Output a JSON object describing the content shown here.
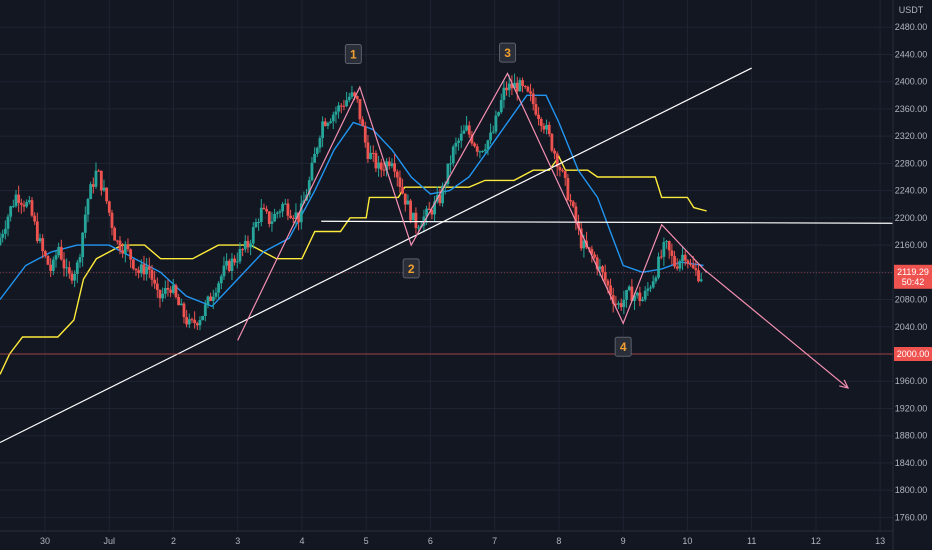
{
  "chart_data": {
    "type": "candlestick",
    "currency": "USDT",
    "y_axis": {
      "ticks": [
        2480,
        2440,
        2400,
        2360,
        2320,
        2280,
        2240,
        2200,
        2160,
        2120,
        2080,
        2040,
        2000,
        1960,
        1920,
        1880,
        1840,
        1800,
        1760
      ],
      "tick_labels": [
        "2480.00",
        "2440.00",
        "2400.00",
        "2360.00",
        "2320.00",
        "2280.00",
        "2240.00",
        "2200.00",
        "2160.00",
        "2120.00",
        "2080.00",
        "2040.00",
        "2000.00",
        "1960.00",
        "1920.00",
        "1880.00",
        "1840.00",
        "1800.00",
        "1760.00"
      ],
      "range": [
        1740,
        2520
      ]
    },
    "x_axis": {
      "tick_labels": [
        "30",
        "Jul",
        "2",
        "3",
        "4",
        "5",
        "6",
        "7",
        "8",
        "9",
        "10",
        "11",
        "12",
        "13"
      ],
      "tick_positions": [
        -1,
        0,
        1,
        2,
        3,
        4,
        5,
        6,
        7,
        8,
        9,
        10,
        11,
        12
      ],
      "range": [
        -1.7,
        12.2
      ]
    },
    "current_price": {
      "value": 2119.29,
      "label": "2119.29",
      "countdown": "50:42"
    },
    "support_level": {
      "value": 2000,
      "label": "2000.00"
    },
    "candles_anchor_path": [
      [
        -1.7,
        2160
      ],
      [
        -1.55,
        2200
      ],
      [
        -1.4,
        2235
      ],
      [
        -1.2,
        2215
      ],
      [
        -1.0,
        2150
      ],
      [
        -0.85,
        2120
      ],
      [
        -0.75,
        2160
      ],
      [
        -0.6,
        2110
      ],
      [
        -0.45,
        2130
      ],
      [
        -0.3,
        2225
      ],
      [
        -0.15,
        2270
      ],
      [
        0.0,
        2225
      ],
      [
        0.15,
        2165
      ],
      [
        0.3,
        2155
      ],
      [
        0.5,
        2120
      ],
      [
        0.65,
        2130
      ],
      [
        0.8,
        2080
      ],
      [
        1.0,
        2100
      ],
      [
        1.1,
        2075
      ],
      [
        1.3,
        2040
      ],
      [
        1.5,
        2060
      ],
      [
        1.7,
        2100
      ],
      [
        1.85,
        2125
      ],
      [
        2.0,
        2140
      ],
      [
        2.2,
        2160
      ],
      [
        2.4,
        2210
      ],
      [
        2.55,
        2195
      ],
      [
        2.75,
        2220
      ],
      [
        3.0,
        2200
      ],
      [
        3.15,
        2250
      ],
      [
        3.35,
        2340
      ],
      [
        3.55,
        2355
      ],
      [
        3.8,
        2380
      ],
      [
        3.9,
        2370
      ],
      [
        4.05,
        2300
      ],
      [
        4.25,
        2270
      ],
      [
        4.45,
        2290
      ],
      [
        4.6,
        2240
      ],
      [
        4.8,
        2190
      ],
      [
        5.0,
        2205
      ],
      [
        5.2,
        2230
      ],
      [
        5.4,
        2300
      ],
      [
        5.6,
        2330
      ],
      [
        5.8,
        2300
      ],
      [
        6.0,
        2320
      ],
      [
        6.2,
        2390
      ],
      [
        6.4,
        2395
      ],
      [
        6.6,
        2375
      ],
      [
        6.8,
        2340
      ],
      [
        7.0,
        2290
      ],
      [
        7.2,
        2230
      ],
      [
        7.4,
        2160
      ],
      [
        7.6,
        2140
      ],
      [
        7.8,
        2100
      ],
      [
        7.95,
        2070
      ],
      [
        8.15,
        2090
      ],
      [
        8.35,
        2080
      ],
      [
        8.5,
        2110
      ],
      [
        8.7,
        2160
      ],
      [
        8.85,
        2130
      ],
      [
        9.0,
        2150
      ],
      [
        9.1,
        2125
      ],
      [
        9.25,
        2115
      ]
    ],
    "blue_line": [
      [
        -1.7,
        2080
      ],
      [
        -1.3,
        2130
      ],
      [
        -0.9,
        2150
      ],
      [
        -0.5,
        2160
      ],
      [
        0.0,
        2160
      ],
      [
        0.4,
        2140
      ],
      [
        0.8,
        2120
      ],
      [
        1.2,
        2085
      ],
      [
        1.6,
        2070
      ],
      [
        2.0,
        2110
      ],
      [
        2.4,
        2150
      ],
      [
        2.8,
        2170
      ],
      [
        3.2,
        2240
      ],
      [
        3.5,
        2300
      ],
      [
        3.8,
        2340
      ],
      [
        4.1,
        2330
      ],
      [
        4.4,
        2300
      ],
      [
        4.7,
        2260
      ],
      [
        5.0,
        2235
      ],
      [
        5.3,
        2240
      ],
      [
        5.6,
        2260
      ],
      [
        5.9,
        2300
      ],
      [
        6.2,
        2340
      ],
      [
        6.5,
        2380
      ],
      [
        6.8,
        2380
      ],
      [
        7.0,
        2340
      ],
      [
        7.3,
        2270
      ],
      [
        7.6,
        2230
      ],
      [
        7.8,
        2180
      ],
      [
        8.0,
        2130
      ],
      [
        8.3,
        2120
      ],
      [
        8.6,
        2125
      ],
      [
        8.9,
        2135
      ],
      [
        9.25,
        2130
      ]
    ],
    "yellow_line": [
      [
        -1.7,
        1970
      ],
      [
        -1.55,
        2000
      ],
      [
        -1.35,
        2025
      ],
      [
        -0.8,
        2025
      ],
      [
        -0.55,
        2050
      ],
      [
        -0.4,
        2110
      ],
      [
        -0.2,
        2140
      ],
      [
        0.2,
        2160
      ],
      [
        0.55,
        2160
      ],
      [
        0.8,
        2140
      ],
      [
        1.3,
        2140
      ],
      [
        1.7,
        2160
      ],
      [
        2.2,
        2160
      ],
      [
        2.6,
        2140
      ],
      [
        3.0,
        2140
      ],
      [
        3.2,
        2180
      ],
      [
        3.6,
        2180
      ],
      [
        3.75,
        2200
      ],
      [
        4.0,
        2200
      ],
      [
        4.05,
        2230
      ],
      [
        4.5,
        2230
      ],
      [
        4.6,
        2245
      ],
      [
        5.6,
        2245
      ],
      [
        5.85,
        2255
      ],
      [
        6.3,
        2255
      ],
      [
        6.6,
        2270
      ],
      [
        6.85,
        2270
      ],
      [
        7.0,
        2290
      ],
      [
        7.1,
        2270
      ],
      [
        7.45,
        2270
      ],
      [
        7.6,
        2260
      ],
      [
        8.5,
        2260
      ],
      [
        8.6,
        2230
      ],
      [
        9.0,
        2230
      ],
      [
        9.1,
        2215
      ],
      [
        9.3,
        2210
      ]
    ],
    "pattern_zigzag": [
      [
        2.0,
        2020
      ],
      [
        3.9,
        2392
      ],
      [
        4.7,
        2160
      ],
      [
        6.2,
        2412
      ],
      [
        8.0,
        2045
      ],
      [
        8.6,
        2190
      ],
      [
        9.3,
        2120
      ]
    ],
    "pattern_labels": [
      {
        "text": "1",
        "x": 3.8,
        "y": 2440
      },
      {
        "text": "2",
        "x": 4.7,
        "y": 2125
      },
      {
        "text": "3",
        "x": 6.2,
        "y": 2442
      },
      {
        "text": "4",
        "x": 8.0,
        "y": 2010
      }
    ],
    "trendline": {
      "from": [
        -1.7,
        1870
      ],
      "to": [
        10.0,
        2420
      ]
    },
    "neckline": {
      "from": [
        3.3,
        2195
      ],
      "to": [
        12.2,
        2192
      ]
    },
    "projection_arrow": {
      "from": [
        9.25,
        2125
      ],
      "to": [
        11.5,
        1950
      ]
    },
    "colors": {
      "background": "#131722",
      "grid": "#1f2433",
      "up": "#26a69a",
      "down": "#ef5350",
      "blue_line": "#2196f3",
      "yellow_line": "#ffeb3b",
      "pattern": "#f48fb1",
      "trendline": "#ffffff",
      "support": "#ef5350",
      "label_text": "#f0a030",
      "price_tag": "#ef5350",
      "axis_text": "#b2b5be"
    }
  }
}
